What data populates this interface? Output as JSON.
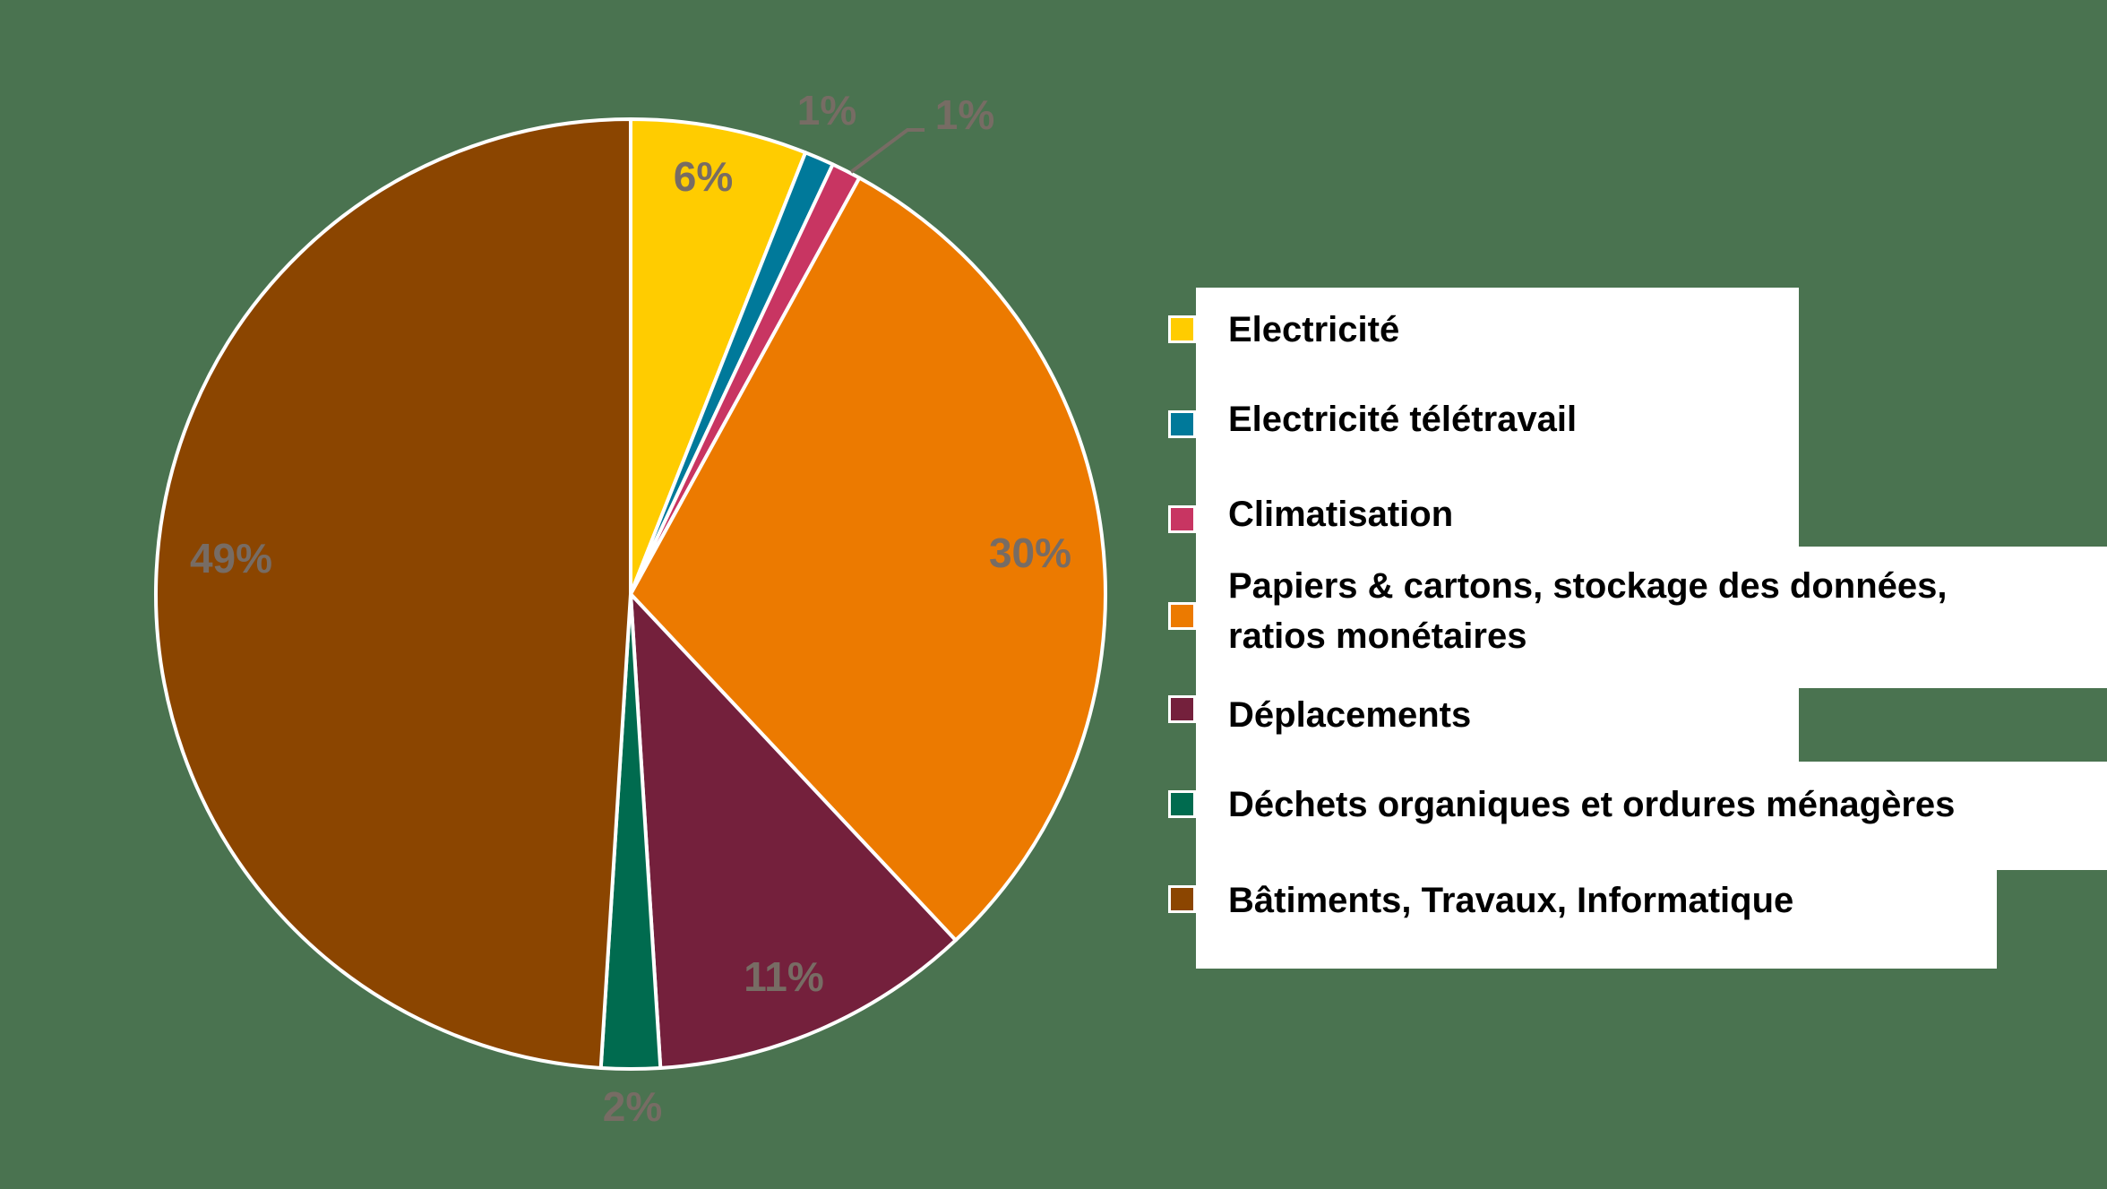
{
  "chart_data": {
    "type": "pie",
    "title": "",
    "start_angle": "12 o'clock, clockwise",
    "categories": [
      "Electricité",
      "Electricité télétravail",
      "Climatisation",
      "Papiers & cartons, stockage des données, ratios monétaires",
      "Déplacements",
      "Déchets organiques et ordures ménagères",
      "Bâtiments, Travaux, Informatique"
    ],
    "values": [
      6,
      1,
      1,
      30,
      11,
      2,
      49
    ],
    "labels": [
      "6%",
      "1%",
      "1%",
      "30%",
      "11%",
      "2%",
      "49%"
    ],
    "colors": [
      "#ffcc00",
      "#00799a",
      "#c83562",
      "#ec7a00",
      "#74203c",
      "#006b4f",
      "#8b4500"
    ],
    "legend_position": "right"
  },
  "legend": {
    "items": [
      {
        "label": "Electricité",
        "color": "#ffcc00"
      },
      {
        "label": "Electricité télétravail",
        "color": "#00799a"
      },
      {
        "label": "Climatisation",
        "color": "#c83562"
      },
      {
        "label_line1": "Papiers & cartons, stockage des données,",
        "label_line2": "ratios monétaires",
        "color": "#ec7a00"
      },
      {
        "label": "Déplacements",
        "color": "#74203c"
      },
      {
        "label": "Déchets organiques et ordures ménagères",
        "color": "#006b4f"
      },
      {
        "label": "Bâtiments, Travaux, Informatique",
        "color": "#8b4500"
      }
    ]
  },
  "data_labels": {
    "electricite": "6%",
    "teletravail": "1%",
    "climatisation": "1%",
    "papiers": "30%",
    "deplacements": "11%",
    "dechets": "2%",
    "batiments": "49%"
  },
  "colors": {
    "background": "#4a7350",
    "label_text": "#776c64",
    "leader_line": "#776c64",
    "slice_border": "#ffffff"
  }
}
